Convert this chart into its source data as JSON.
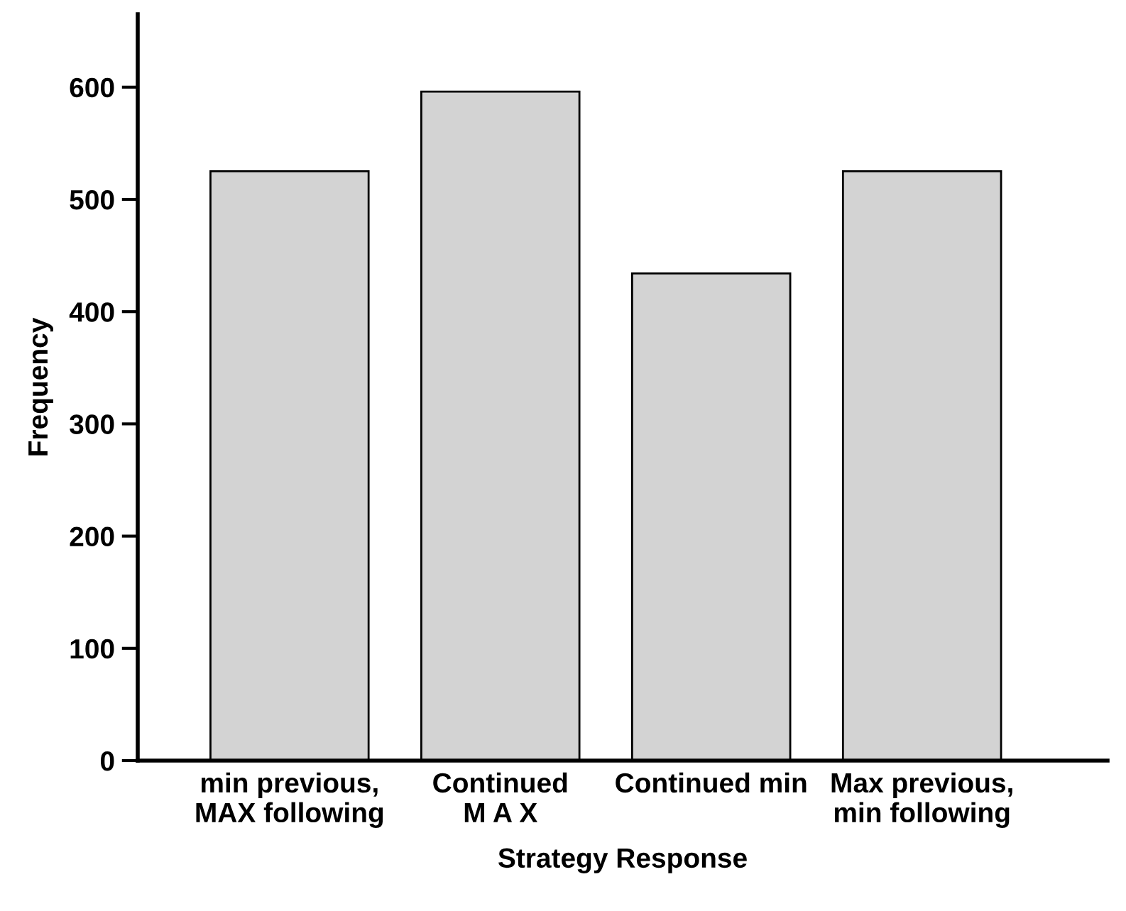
{
  "chart_data": {
    "type": "bar",
    "xlabel": "Strategy Response",
    "ylabel": "Frequency",
    "categories": [
      "min previous,\nMAX following",
      "Continued\nM A X",
      "Continued min",
      "Max previous,\nmin following"
    ],
    "values": [
      525,
      596,
      434,
      525
    ],
    "color": "#d3d3d3",
    "ylim": [
      0,
      665
    ],
    "yticks": [
      0,
      100,
      200,
      300,
      400,
      500,
      600
    ],
    "grid": false,
    "legend": false
  }
}
